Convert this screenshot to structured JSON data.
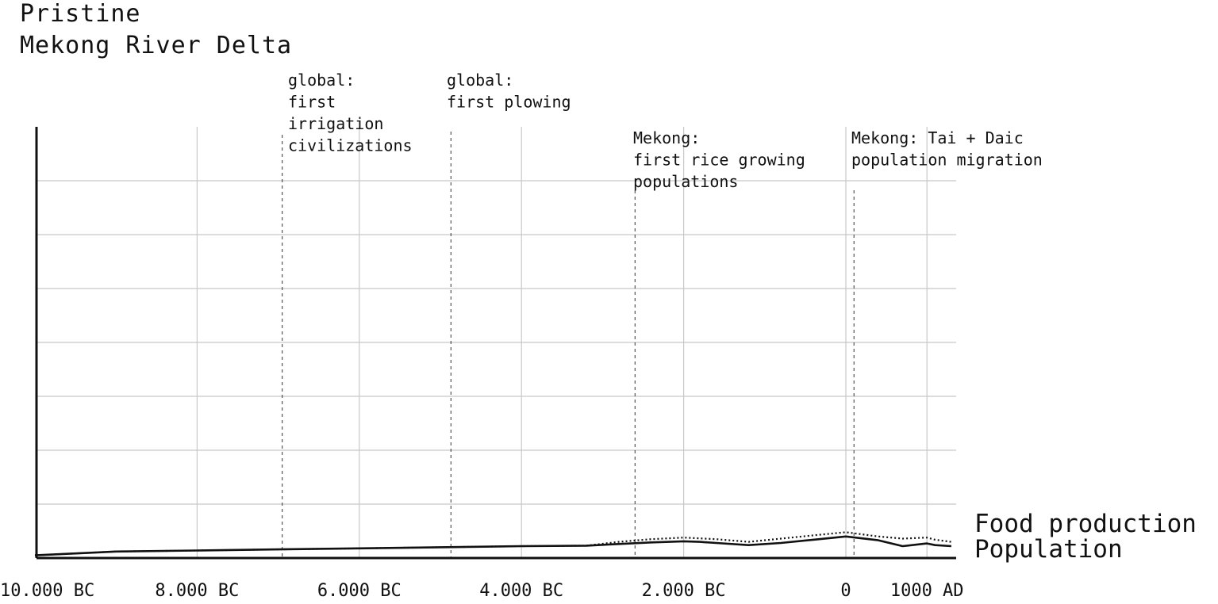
{
  "chart_data": {
    "type": "line",
    "title": "Pristine",
    "subtitle": "Mekong River Delta",
    "xlabel": "",
    "ylabel": "",
    "xlim": [
      -10000,
      1300
    ],
    "ylim": [
      0,
      8
    ],
    "grid": true,
    "x_ticks": [
      {
        "value": -10000,
        "label": "10.000 BC"
      },
      {
        "value": -8000,
        "label": "8.000 BC"
      },
      {
        "value": -6000,
        "label": "6.000 BC"
      },
      {
        "value": -4000,
        "label": "4.000 BC"
      },
      {
        "value": -2000,
        "label": "2.000 BC"
      },
      {
        "value": 0,
        "label": "0"
      },
      {
        "value": 1000,
        "label": "1000 AD"
      }
    ],
    "y_gridlines": [
      1,
      2,
      3,
      4,
      5,
      6,
      7
    ],
    "series": [
      {
        "name": "Food production",
        "style": "dotted",
        "x": [
          -10000,
          -9000,
          -8000,
          -7000,
          -6000,
          -5000,
          -4000,
          -3200,
          -2800,
          -2400,
          -2000,
          -1600,
          -1200,
          -800,
          -400,
          0,
          400,
          700,
          1000,
          1100,
          1300
        ],
        "y": [
          0.05,
          0.12,
          0.14,
          0.16,
          0.18,
          0.2,
          0.22,
          0.23,
          0.3,
          0.35,
          0.38,
          0.35,
          0.3,
          0.36,
          0.42,
          0.48,
          0.4,
          0.36,
          0.38,
          0.34,
          0.3
        ]
      },
      {
        "name": "Population",
        "style": "solid",
        "x": [
          -10000,
          -9000,
          -8000,
          -7000,
          -6000,
          -5000,
          -4000,
          -3200,
          -2800,
          -2400,
          -2000,
          -1800,
          -1600,
          -1200,
          -800,
          -400,
          0,
          400,
          700,
          1000,
          1100,
          1300
        ],
        "y": [
          0.05,
          0.12,
          0.14,
          0.16,
          0.18,
          0.2,
          0.22,
          0.23,
          0.26,
          0.29,
          0.31,
          0.3,
          0.28,
          0.24,
          0.28,
          0.34,
          0.4,
          0.33,
          0.22,
          0.27,
          0.24,
          0.22
        ]
      }
    ],
    "annotations": [
      {
        "x": -6950,
        "lines": [
          "global:",
          "first",
          "irrigation",
          "civilizations"
        ],
        "style": "dashed"
      },
      {
        "x": -4870,
        "lines": [
          "global:",
          "first plowing"
        ],
        "style": "dashed"
      },
      {
        "x": -2600,
        "lines": [
          "Mekong:",
          "first rice growing",
          "populations"
        ],
        "style": "dashed"
      },
      {
        "x": 100,
        "lines": [
          "Mekong: Tai + Daic",
          "population migration"
        ],
        "style": "dashed"
      }
    ],
    "series_labels": [
      "Food production",
      "Population"
    ]
  }
}
